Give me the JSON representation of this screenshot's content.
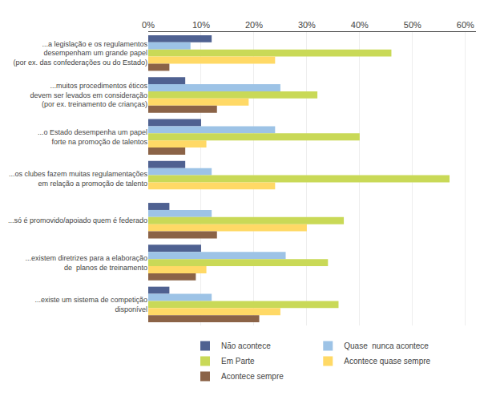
{
  "chart_data": {
    "type": "bar",
    "orientation": "horizontal",
    "categories": [
      "...a legislação e os regulamentos\ndesempenham um grande papel\n(por ex. das confederações ou do Estado)",
      "...muitos procedimentos éticos\ndevem ser levados em consideração\n(por ex. treinamento de crianças)",
      "...o Estado desempenha um papel\nforte na promoção de talentos",
      "...os clubes fazem muitas regulamentações\nem relação a promoção de talento",
      "...só é promovido/apoiado quem é federado",
      "...existem diretrizes para a elaboração\nde  planos de treinamento",
      "...existe um sistema de competição\ndisponível"
    ],
    "series": [
      {
        "name": "Não acontece",
        "color": "#4f6191",
        "values": [
          12,
          7,
          10,
          7,
          4,
          10,
          4
        ]
      },
      {
        "name": "Quase  nunca acontece",
        "color": "#9dc3e6",
        "values": [
          8,
          25,
          24,
          12,
          12,
          26,
          12
        ]
      },
      {
        "name": "Em Parte",
        "color": "#c9d957",
        "values": [
          46,
          32,
          40,
          57,
          37,
          34,
          36
        ]
      },
      {
        "name": "Acontece quase sempre",
        "color": "#ffd966",
        "values": [
          24,
          19,
          11,
          24,
          30,
          11,
          25
        ]
      },
      {
        "name": "Acontece sempre",
        "color": "#8b6347",
        "values": [
          4,
          13,
          7,
          0,
          13,
          9,
          21
        ]
      }
    ],
    "xlim": [
      0,
      62
    ],
    "xticks": [
      {
        "value": 0,
        "label": "0%"
      },
      {
        "value": 10,
        "label": "10%"
      },
      {
        "value": 20,
        "label": "20%"
      },
      {
        "value": 30,
        "label": "30%"
      },
      {
        "value": 40,
        "label": "40%"
      },
      {
        "value": 50,
        "label": "50%"
      },
      {
        "value": 60,
        "label": "60%"
      }
    ],
    "grid": true,
    "legend": "bottom"
  }
}
